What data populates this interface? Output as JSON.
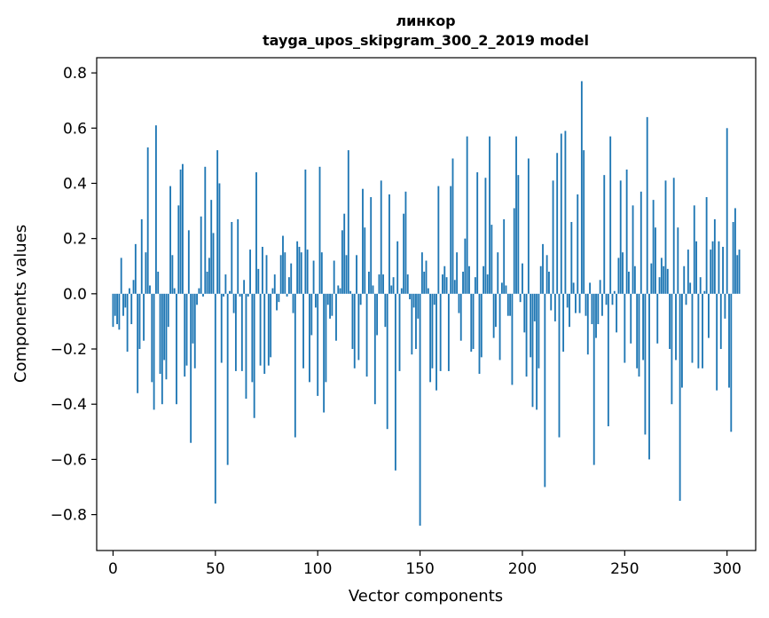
{
  "chart_data": {
    "type": "bar",
    "title": "линкор",
    "subtitle": "tayga_upos_skipgram_300_2_2019 model",
    "xlabel": "Vector components",
    "ylabel": "Components values",
    "xlim": [
      -8,
      314
    ],
    "ylim": [
      -0.93,
      0.855
    ],
    "xticks": [
      0,
      50,
      100,
      150,
      200,
      250,
      300
    ],
    "yticks": [
      -0.8,
      -0.6,
      -0.4,
      -0.2,
      0.0,
      0.2,
      0.4,
      0.6,
      0.8
    ],
    "ytick_labels": [
      "−0.8",
      "−0.6",
      "−0.4",
      "−0.2",
      "0.0",
      "0.2",
      "0.4",
      "0.6",
      "0.8"
    ],
    "bar_color": "#1f77b4",
    "values": [
      -0.12,
      -0.08,
      -0.11,
      -0.13,
      0.13,
      -0.08,
      -0.05,
      -0.21,
      0.02,
      -0.11,
      0.05,
      0.18,
      -0.36,
      -0.2,
      0.27,
      -0.17,
      0.15,
      0.53,
      0.03,
      -0.32,
      -0.42,
      0.61,
      0.08,
      -0.29,
      -0.4,
      -0.24,
      -0.31,
      -0.12,
      0.39,
      0.14,
      0.02,
      -0.4,
      0.32,
      0.45,
      0.47,
      -0.3,
      -0.26,
      0.23,
      -0.54,
      -0.18,
      -0.27,
      -0.04,
      0.02,
      0.28,
      -0.01,
      0.46,
      0.08,
      0.13,
      0.34,
      0.22,
      -0.76,
      0.52,
      0.4,
      -0.25,
      -0.01,
      0.07,
      -0.62,
      0.01,
      0.26,
      -0.07,
      -0.28,
      0.27,
      -0.01,
      -0.28,
      0.05,
      -0.38,
      -0.01,
      0.16,
      -0.32,
      -0.45,
      0.44,
      0.09,
      -0.26,
      0.17,
      -0.29,
      0.14,
      -0.26,
      -0.23,
      0.02,
      0.07,
      -0.06,
      -0.03,
      0.14,
      0.21,
      0.15,
      -0.01,
      0.06,
      0.11,
      -0.07,
      -0.52,
      0.19,
      0.17,
      0.15,
      -0.27,
      0.45,
      0.16,
      -0.32,
      -0.15,
      0.12,
      -0.05,
      -0.37,
      0.46,
      0.15,
      -0.43,
      -0.32,
      -0.04,
      -0.09,
      -0.08,
      0.12,
      -0.17,
      0.03,
      0.02,
      0.23,
      0.29,
      0.14,
      0.52,
      0.01,
      -0.2,
      -0.27,
      0.14,
      -0.24,
      -0.04,
      0.38,
      0.24,
      -0.3,
      0.08,
      0.35,
      0.03,
      -0.4,
      -0.15,
      0.07,
      0.41,
      0.07,
      -0.12,
      -0.49,
      0.36,
      0.03,
      0.06,
      -0.64,
      0.19,
      -0.28,
      0.02,
      0.29,
      0.37,
      0.07,
      -0.02,
      -0.22,
      -0.05,
      -0.2,
      -0.09,
      -0.84,
      0.15,
      0.08,
      0.12,
      0.02,
      -0.32,
      -0.27,
      -0.04,
      -0.35,
      0.39,
      -0.28,
      0.07,
      0.1,
      0.06,
      -0.28,
      0.39,
      0.49,
      0.05,
      0.15,
      -0.07,
      -0.17,
      0.08,
      0.2,
      0.57,
      0.1,
      -0.21,
      -0.2,
      0.06,
      0.44,
      -0.29,
      -0.23,
      0.1,
      0.42,
      0.07,
      0.57,
      0.25,
      -0.16,
      -0.12,
      0.15,
      -0.24,
      0.04,
      0.27,
      0.03,
      -0.08,
      -0.08,
      -0.33,
      0.31,
      0.57,
      0.43,
      -0.03,
      0.11,
      -0.14,
      -0.3,
      0.49,
      -0.23,
      -0.41,
      -0.1,
      -0.42,
      -0.27,
      0.1,
      0.18,
      -0.7,
      0.14,
      0.08,
      -0.06,
      0.41,
      -0.1,
      0.51,
      -0.52,
      0.58,
      -0.21,
      0.59,
      -0.05,
      -0.12,
      0.26,
      0.04,
      -0.07,
      0.36,
      -0.07,
      0.77,
      0.52,
      -0.08,
      -0.22,
      0.04,
      -0.11,
      -0.62,
      -0.16,
      -0.11,
      0.05,
      -0.08,
      0.43,
      -0.04,
      -0.48,
      0.57,
      -0.04,
      0.01,
      -0.14,
      0.13,
      0.41,
      0.15,
      -0.25,
      0.45,
      0.08,
      -0.18,
      0.32,
      0.1,
      -0.27,
      -0.3,
      0.37,
      -0.24,
      -0.51,
      0.64,
      -0.6,
      0.11,
      0.34,
      0.24,
      -0.18,
      0.06,
      0.13,
      0.1,
      0.41,
      0.09,
      -0.2,
      -0.4,
      0.42,
      -0.24,
      0.24,
      -0.75,
      -0.34,
      0.1,
      -0.04,
      0.16,
      0.04,
      -0.25,
      0.32,
      0.19,
      -0.27,
      0.06,
      -0.27,
      0.01,
      0.35,
      -0.16,
      0.16,
      0.19,
      0.27,
      -0.35,
      0.19,
      -0.2,
      0.17,
      -0.09,
      0.6,
      -0.34,
      -0.5,
      0.26,
      0.31,
      0.14,
      0.16
    ]
  }
}
